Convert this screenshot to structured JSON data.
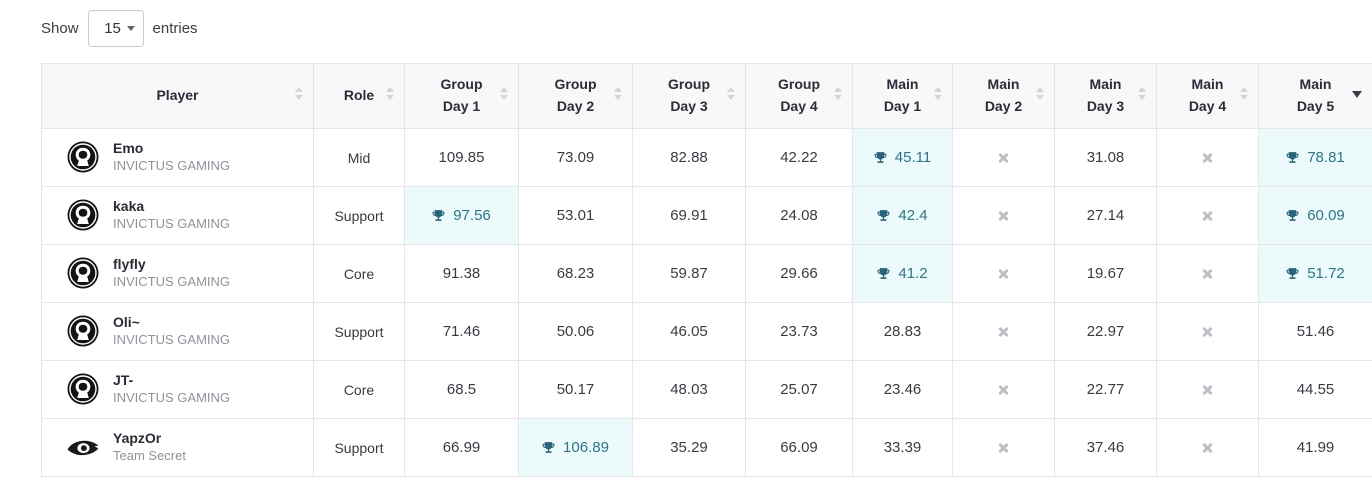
{
  "controls": {
    "show_label": "Show",
    "entries_label": "entries",
    "page_length_value": "15"
  },
  "table": {
    "columns": [
      {
        "key": "player",
        "lines": [
          "Player"
        ],
        "sort": "none"
      },
      {
        "key": "role",
        "lines": [
          "Role"
        ],
        "sort": "none"
      },
      {
        "key": "group-day-1",
        "lines": [
          "Group",
          "Day 1"
        ],
        "sort": "none"
      },
      {
        "key": "group-day-2",
        "lines": [
          "Group",
          "Day 2"
        ],
        "sort": "none"
      },
      {
        "key": "group-day-3",
        "lines": [
          "Group",
          "Day 3"
        ],
        "sort": "none"
      },
      {
        "key": "group-day-4",
        "lines": [
          "Group",
          "Day 4"
        ],
        "sort": "none"
      },
      {
        "key": "main-day-1",
        "lines": [
          "Main",
          "Day 1"
        ],
        "sort": "none"
      },
      {
        "key": "main-day-2",
        "lines": [
          "Main",
          "Day 2"
        ],
        "sort": "none"
      },
      {
        "key": "main-day-3",
        "lines": [
          "Main",
          "Day 3"
        ],
        "sort": "none"
      },
      {
        "key": "main-day-4",
        "lines": [
          "Main",
          "Day 4"
        ],
        "sort": "none"
      },
      {
        "key": "main-day-5",
        "lines": [
          "Main",
          "Day 5"
        ],
        "sort": "desc"
      }
    ],
    "rows": [
      {
        "player": "Emo",
        "team": "INVICTUS GAMING",
        "logo": "invictus-gaming",
        "role": "Mid",
        "scores": [
          {
            "value": "109.85"
          },
          {
            "value": "73.09"
          },
          {
            "value": "82.88"
          },
          {
            "value": "42.22"
          },
          {
            "value": "45.11",
            "trophy": true,
            "highlight": true
          },
          {
            "missing": true
          },
          {
            "value": "31.08"
          },
          {
            "missing": true
          },
          {
            "value": "78.81",
            "trophy": true,
            "highlight": true
          }
        ]
      },
      {
        "player": "kaka",
        "team": "INVICTUS GAMING",
        "logo": "invictus-gaming",
        "role": "Support",
        "scores": [
          {
            "value": "97.56",
            "trophy": true,
            "highlight": true
          },
          {
            "value": "53.01"
          },
          {
            "value": "69.91"
          },
          {
            "value": "24.08"
          },
          {
            "value": "42.4",
            "trophy": true,
            "highlight": true
          },
          {
            "missing": true
          },
          {
            "value": "27.14"
          },
          {
            "missing": true
          },
          {
            "value": "60.09",
            "trophy": true,
            "highlight": true
          }
        ]
      },
      {
        "player": "flyfly",
        "team": "INVICTUS GAMING",
        "logo": "invictus-gaming",
        "role": "Core",
        "scores": [
          {
            "value": "91.38"
          },
          {
            "value": "68.23"
          },
          {
            "value": "59.87"
          },
          {
            "value": "29.66"
          },
          {
            "value": "41.2",
            "trophy": true,
            "highlight": true
          },
          {
            "missing": true
          },
          {
            "value": "19.67"
          },
          {
            "missing": true
          },
          {
            "value": "51.72",
            "trophy": true,
            "highlight": true
          }
        ]
      },
      {
        "player": "Oli~",
        "team": "INVICTUS GAMING",
        "logo": "invictus-gaming",
        "role": "Support",
        "scores": [
          {
            "value": "71.46"
          },
          {
            "value": "50.06"
          },
          {
            "value": "46.05"
          },
          {
            "value": "23.73"
          },
          {
            "value": "28.83"
          },
          {
            "missing": true
          },
          {
            "value": "22.97"
          },
          {
            "missing": true
          },
          {
            "value": "51.46"
          }
        ]
      },
      {
        "player": "JT-",
        "team": "INVICTUS GAMING",
        "logo": "invictus-gaming",
        "role": "Core",
        "scores": [
          {
            "value": "68.5"
          },
          {
            "value": "50.17"
          },
          {
            "value": "48.03"
          },
          {
            "value": "25.07"
          },
          {
            "value": "23.46"
          },
          {
            "missing": true
          },
          {
            "value": "22.77"
          },
          {
            "missing": true
          },
          {
            "value": "44.55"
          }
        ]
      },
      {
        "player": "YapzOr",
        "team": "Team Secret",
        "logo": "team-secret",
        "role": "Support",
        "scores": [
          {
            "value": "66.99"
          },
          {
            "value": "106.89",
            "trophy": true,
            "highlight": true
          },
          {
            "value": "35.29"
          },
          {
            "value": "66.09"
          },
          {
            "value": "33.39"
          },
          {
            "missing": true
          },
          {
            "value": "37.46"
          },
          {
            "missing": true
          },
          {
            "value": "41.99"
          }
        ]
      }
    ]
  },
  "colors": {
    "accent_teal": "#2a758c",
    "highlight_bg": "#edfafc",
    "header_bg": "#f8f8f9",
    "border": "#e6e6ea",
    "text_dark": "#33333d",
    "muted_grey": "#92929e",
    "missing_grey": "#bfbfc7"
  }
}
